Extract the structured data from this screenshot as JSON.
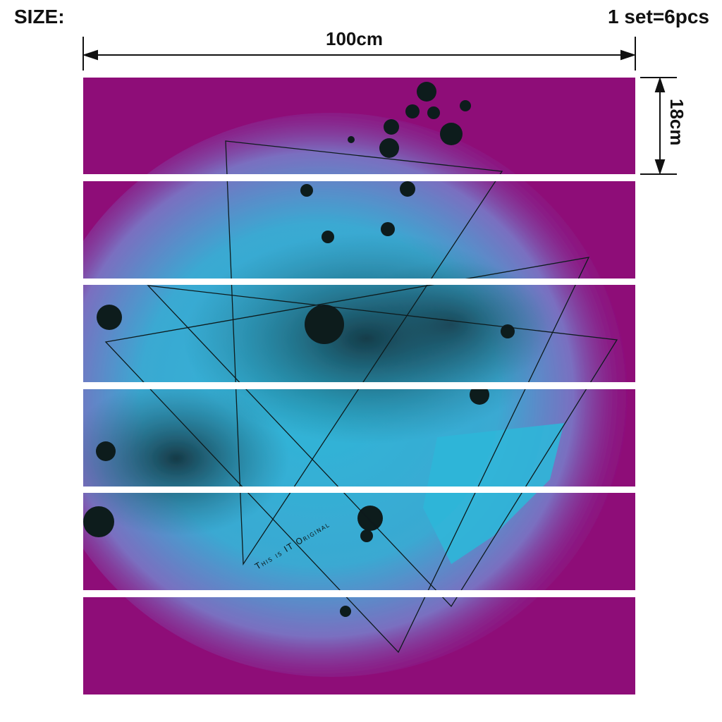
{
  "labels": {
    "size": "SIZE:",
    "set": "1 set=6pcs",
    "width": "100cm",
    "height": "18cm"
  },
  "artwork": {
    "panels": 6,
    "text": "This is IT Original",
    "colors": {
      "background": "#8e0a78",
      "splash": "#2fb6d8",
      "ink": "#0e1a1f"
    }
  }
}
